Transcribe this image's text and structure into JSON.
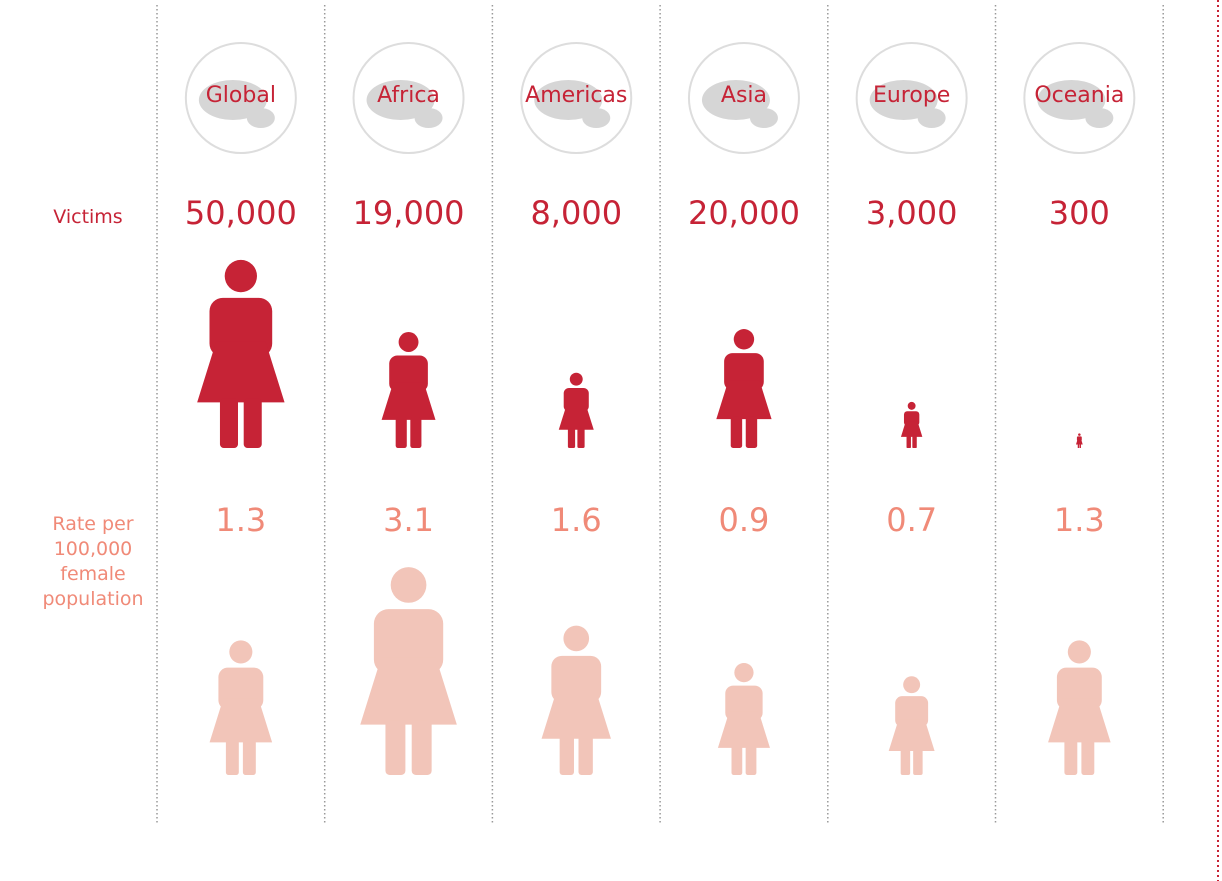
{
  "chart_data": {
    "type": "pictogram",
    "categories": [
      "Global",
      "Africa",
      "Americas",
      "Asia",
      "Europe",
      "Oceania"
    ],
    "series": [
      {
        "name": "Victims",
        "color": "#c62336",
        "values": [
          50000,
          19000,
          8000,
          20000,
          3000,
          300
        ],
        "value_labels": [
          "50,000",
          "19,000",
          "8,000",
          "20,000",
          "3,000",
          "300"
        ]
      },
      {
        "name": "Rate per 100,000 female population",
        "color": "#f2c5b9",
        "values": [
          1.3,
          3.1,
          1.6,
          0.9,
          0.7,
          1.3
        ]
      }
    ]
  }
}
